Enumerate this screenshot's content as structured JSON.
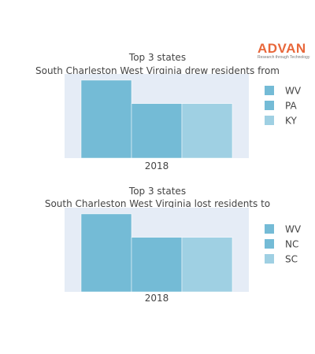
{
  "brand": {
    "name": "ADVAN",
    "tagline": "Research through Technology",
    "color": "#e8673a"
  },
  "chart_data": [
    {
      "type": "bar",
      "title": "Top 3 states",
      "subtitle": "South Charleston West Virginia drew residents from",
      "categories": [
        "2018"
      ],
      "series": [
        {
          "name": "WV",
          "values": [
            100
          ],
          "color": "#74bbd6"
        },
        {
          "name": "PA",
          "values": [
            70
          ],
          "color": "#74bbd6"
        },
        {
          "name": "KY",
          "values": [
            70
          ],
          "color": "#9fd0e3"
        }
      ],
      "ylim": [
        0,
        108
      ],
      "grid": false,
      "legend": "right"
    },
    {
      "type": "bar",
      "title": "Top 3 states",
      "subtitle": "South Charleston West Virginia lost residents to",
      "categories": [
        "2018"
      ],
      "series": [
        {
          "name": "WV",
          "values": [
            100
          ],
          "color": "#74bbd6"
        },
        {
          "name": "NC",
          "values": [
            70
          ],
          "color": "#74bbd6"
        },
        {
          "name": "SC",
          "values": [
            70
          ],
          "color": "#9fd0e3"
        }
      ],
      "ylim": [
        0,
        108
      ],
      "grid": false,
      "legend": "right"
    }
  ]
}
